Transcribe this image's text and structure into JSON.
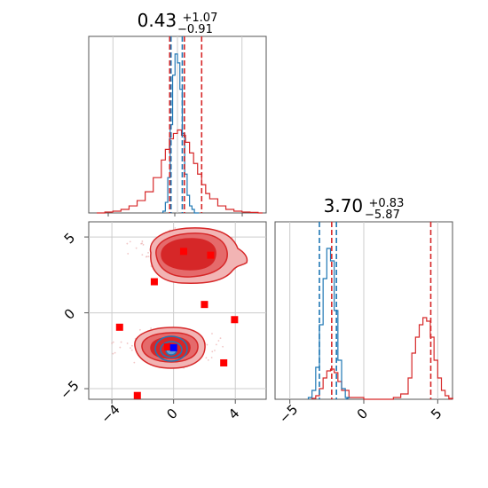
{
  "colors": {
    "primary": "#d62728",
    "secondary": "#1f77b4",
    "marker": "#ff0000",
    "truth": "#0000ff",
    "grid": "#cccccc",
    "axis": "#555555",
    "fill_dark": "#d62728",
    "fill_mid": "#e56a6b",
    "fill_light": "#f2b4b4"
  },
  "titles": {
    "param1": {
      "value": "0.43",
      "plus": "+1.07",
      "minus": "−0.91"
    },
    "param2": {
      "value": "3.70",
      "plus": "+0.83",
      "minus": "−5.87"
    }
  },
  "chart_data": [
    {
      "type": "line",
      "panel": "marginal-param1",
      "xlim": [
        -5.5,
        5.5
      ],
      "grid": true,
      "series": [
        {
          "color": "#d62728",
          "x": [
            -5.0,
            -4.5,
            -4.0,
            -3.5,
            -3.0,
            -2.5,
            -2.0,
            -1.5,
            -1.0,
            -0.75,
            -0.5,
            -0.25,
            0.0,
            0.25,
            0.5,
            0.75,
            1.0,
            1.25,
            1.5,
            1.75,
            2.0,
            2.5,
            3.0,
            3.5,
            4.0,
            4.5,
            5.0
          ],
          "values": [
            0.0,
            0.005,
            0.01,
            0.02,
            0.04,
            0.07,
            0.12,
            0.2,
            0.3,
            0.36,
            0.42,
            0.45,
            0.47,
            0.44,
            0.4,
            0.34,
            0.28,
            0.22,
            0.16,
            0.11,
            0.08,
            0.04,
            0.02,
            0.01,
            0.005,
            0.003,
            0.0
          ]
        },
        {
          "color": "#1f77b4",
          "x": [
            -0.9,
            -0.75,
            -0.6,
            -0.45,
            -0.3,
            -0.15,
            0.0,
            0.15,
            0.3,
            0.45,
            0.6,
            0.75,
            0.9,
            1.05
          ],
          "values": [
            0.01,
            0.06,
            0.2,
            0.5,
            0.78,
            0.9,
            0.85,
            0.7,
            0.45,
            0.22,
            0.1,
            0.04,
            0.02,
            0.0
          ]
        }
      ],
      "quantile_lines": [
        {
          "color": "#d62728",
          "x": [
            -0.48,
            0.43,
            1.5
          ]
        },
        {
          "color": "#1f77b4",
          "x": [
            -0.4,
            0.3
          ]
        }
      ]
    },
    {
      "type": "line",
      "panel": "marginal-param2",
      "xlim": [
        -6,
        6
      ],
      "xticks": [
        -5,
        0,
        5
      ],
      "grid": true,
      "series": [
        {
          "color": "#d62728",
          "x": [
            -3.5,
            -3.25,
            -3.0,
            -2.75,
            -2.5,
            -2.25,
            -2.0,
            -1.75,
            -1.5,
            -1.0,
            0.0,
            1.0,
            2.0,
            2.5,
            3.0,
            3.25,
            3.5,
            3.75,
            4.0,
            4.25,
            4.5,
            4.75,
            5.0,
            5.25,
            5.5,
            5.75
          ],
          "values": [
            0.005,
            0.02,
            0.06,
            0.12,
            0.16,
            0.17,
            0.15,
            0.1,
            0.05,
            0.01,
            0.0,
            0.0,
            0.01,
            0.03,
            0.12,
            0.26,
            0.35,
            0.42,
            0.46,
            0.44,
            0.35,
            0.22,
            0.12,
            0.05,
            0.02,
            0.005
          ]
        },
        {
          "color": "#1f77b4",
          "x": [
            -3.75,
            -3.5,
            -3.25,
            -3.0,
            -2.75,
            -2.5,
            -2.25,
            -2.0,
            -1.75,
            -1.5,
            -1.25
          ],
          "values": [
            0.01,
            0.05,
            0.18,
            0.42,
            0.68,
            0.85,
            0.78,
            0.5,
            0.22,
            0.06,
            0.01
          ]
        }
      ],
      "quantile_lines": [
        {
          "color": "#d62728",
          "x": [
            -2.17,
            4.53
          ]
        },
        {
          "color": "#1f77b4",
          "x": [
            -3.0,
            -1.85
          ]
        }
      ]
    },
    {
      "type": "scatter",
      "panel": "joint",
      "xlim": [
        -5.5,
        6.0
      ],
      "ylim": [
        -5.7,
        6.0
      ],
      "xticks": [
        -4,
        0,
        4
      ],
      "yticks": [
        -5,
        0,
        5
      ],
      "grid": true,
      "series": [
        {
          "color": "#ff0000",
          "x": [
            0.65,
            2.4,
            -1.25,
            2.0,
            -3.5,
            3.95,
            -0.4,
            3.25,
            -2.35
          ],
          "values": [
            4.05,
            3.8,
            2.05,
            0.55,
            -0.95,
            -0.45,
            -2.25,
            -3.3,
            -5.45
          ]
        },
        {
          "color": "#0000ff",
          "x": [
            0.0
          ],
          "values": [
            -2.3
          ]
        }
      ],
      "density_modes": [
        {
          "color": "#d62728",
          "x": 0.5,
          "y": 4.2
        },
        {
          "color": "#d62728",
          "x": -0.2,
          "y": -2.3
        },
        {
          "color": "#1f77b4",
          "x": -0.1,
          "y": -2.4
        }
      ]
    }
  ]
}
